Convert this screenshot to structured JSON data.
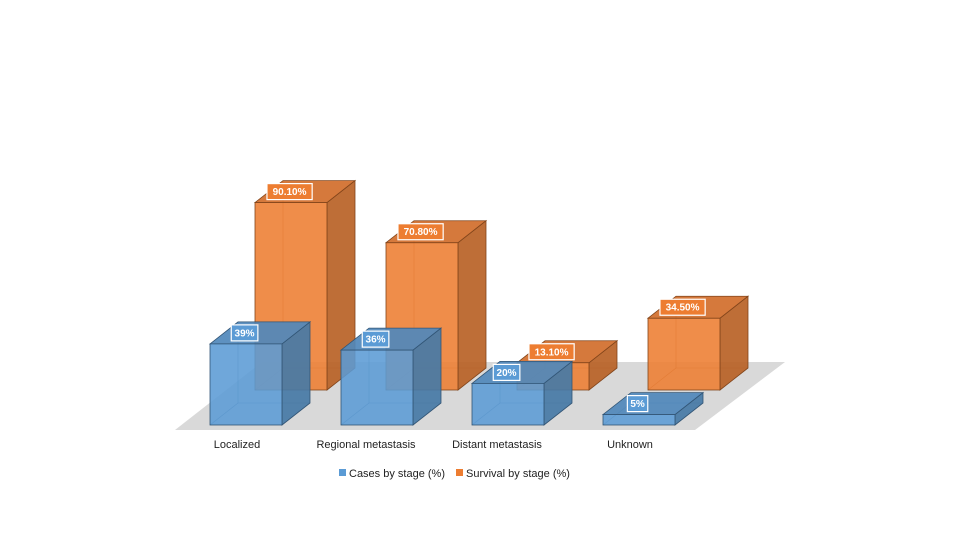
{
  "chart_data": {
    "type": "bar",
    "style": "3d-clustered-column",
    "categories": [
      "Localized",
      "Regional metastasis",
      "Distant metastasis",
      "Unknown"
    ],
    "series": [
      {
        "name": "Cases by stage (%)",
        "values": [
          39,
          36,
          20,
          5
        ],
        "labels": [
          "39%",
          "36%",
          "20%",
          "5%"
        ],
        "color": "#5b9bd5"
      },
      {
        "name": "Survival by stage (%)",
        "values": [
          90.1,
          70.8,
          13.1,
          34.5
        ],
        "labels": [
          "90.10%",
          "70.80%",
          "13.10%",
          "34.50%"
        ],
        "color": "#ed7d31"
      }
    ],
    "ylim": [
      0,
      100
    ],
    "grid": false,
    "legend_position": "bottom"
  }
}
